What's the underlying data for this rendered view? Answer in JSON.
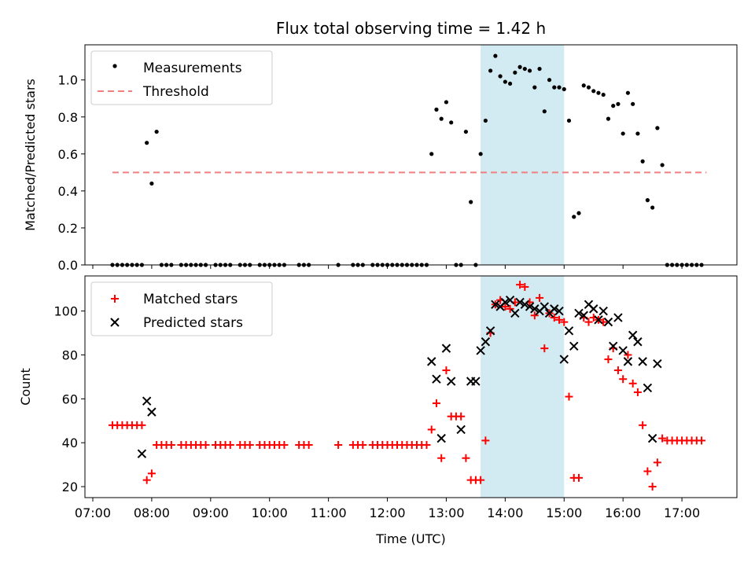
{
  "chart_data": [
    {
      "type": "scatter",
      "title": "Flux total observing time = 1.42 h",
      "xlabel": "",
      "ylabel": "Matched/Predicted stars",
      "ylim": [
        0,
        1.19
      ],
      "yticks": [
        0.0,
        0.2,
        0.4,
        0.6,
        0.8,
        1.0
      ],
      "ytick_labels": [
        "0.0",
        "0.2",
        "0.4",
        "0.6",
        "0.8",
        "1.0"
      ],
      "x_range": [
        "06:52",
        "17:56"
      ],
      "shaded_interval": [
        "13:35",
        "15:00"
      ],
      "shade_color": "#add8e6",
      "legend_position": "upper-left",
      "series": [
        {
          "name": "Measurements",
          "kind": "dots",
          "color": "#000000",
          "x": [
            "07:20",
            "07:25",
            "07:30",
            "07:35",
            "07:40",
            "07:45",
            "07:50",
            "07:55",
            "08:00",
            "08:05",
            "08:10",
            "08:15",
            "08:20",
            "08:30",
            "08:35",
            "08:40",
            "08:45",
            "08:50",
            "08:55",
            "09:05",
            "09:10",
            "09:15",
            "09:20",
            "09:30",
            "09:35",
            "09:40",
            "09:50",
            "09:55",
            "10:00",
            "10:05",
            "10:10",
            "10:15",
            "10:30",
            "10:35",
            "10:40",
            "11:10",
            "11:25",
            "11:30",
            "11:35",
            "11:45",
            "11:50",
            "11:55",
            "12:00",
            "12:05",
            "12:10",
            "12:15",
            "12:20",
            "12:25",
            "12:30",
            "12:35",
            "12:40",
            "12:45",
            "12:50",
            "12:55",
            "13:00",
            "13:05",
            "13:10",
            "13:15",
            "13:20",
            "13:25",
            "13:30",
            "13:35",
            "13:40",
            "13:45",
            "13:50",
            "13:55",
            "14:00",
            "14:05",
            "14:10",
            "14:15",
            "14:20",
            "14:25",
            "14:30",
            "14:35",
            "14:40",
            "14:45",
            "14:50",
            "14:55",
            "15:00",
            "15:05",
            "15:10",
            "15:15",
            "15:20",
            "15:25",
            "15:30",
            "15:35",
            "15:40",
            "15:45",
            "15:50",
            "15:55",
            "16:00",
            "16:05",
            "16:10",
            "16:15",
            "16:20",
            "16:25",
            "16:30",
            "16:35",
            "16:40",
            "16:45",
            "16:50",
            "16:55",
            "17:00",
            "17:05",
            "17:10",
            "17:15",
            "17:20"
          ],
          "y": [
            0,
            0,
            0,
            0,
            0,
            0,
            0,
            0.66,
            0.44,
            0.72,
            0,
            0,
            0,
            0,
            0,
            0,
            0,
            0,
            0,
            0,
            0,
            0,
            0,
            0,
            0,
            0,
            0,
            0,
            0,
            0,
            0,
            0,
            0,
            0,
            0,
            0,
            0,
            0,
            0,
            0,
            0,
            0,
            0,
            0,
            0,
            0,
            0,
            0,
            0,
            0,
            0,
            0.6,
            0.84,
            0.79,
            0.88,
            0.77,
            0,
            0,
            0.72,
            0.34,
            0,
            0.6,
            0.78,
            1.05,
            1.13,
            1.02,
            0.99,
            0.98,
            1.04,
            1.07,
            1.06,
            1.05,
            0.96,
            1.06,
            0.83,
            1.0,
            0.96,
            0.96,
            0.95,
            0.78,
            0.26,
            0.28,
            0.97,
            0.96,
            0.94,
            0.93,
            0.92,
            0.79,
            0.86,
            0.87,
            0.71,
            0.93,
            0.87,
            0.71,
            0.56,
            0.35,
            0.31,
            0.74,
            0.54,
            0,
            0,
            0,
            0,
            0,
            0,
            0,
            0
          ]
        },
        {
          "name": "Threshold",
          "kind": "dashed-line",
          "color": "#f08080",
          "x": [
            "07:20",
            "17:25"
          ],
          "y": [
            0.5,
            0.5
          ]
        }
      ]
    },
    {
      "type": "scatter",
      "title": "",
      "xlabel": "Time (UTC)",
      "ylabel": "Count",
      "ylim": [
        15,
        116
      ],
      "yticks": [
        20,
        40,
        60,
        80,
        100
      ],
      "ytick_labels": [
        "20",
        "40",
        "60",
        "80",
        "100"
      ],
      "x_range": [
        "06:52",
        "17:56"
      ],
      "xticks": [
        "07:00",
        "08:00",
        "09:00",
        "10:00",
        "11:00",
        "12:00",
        "13:00",
        "14:00",
        "15:00",
        "16:00",
        "17:00"
      ],
      "shaded_interval": [
        "13:35",
        "15:00"
      ],
      "shade_color": "#add8e6",
      "legend_position": "upper-left",
      "series": [
        {
          "name": "Matched stars",
          "kind": "plus",
          "color": "#ff0000",
          "x": [
            "07:20",
            "07:25",
            "07:30",
            "07:35",
            "07:40",
            "07:45",
            "07:50",
            "07:55",
            "08:00",
            "08:05",
            "08:10",
            "08:15",
            "08:20",
            "08:30",
            "08:35",
            "08:40",
            "08:45",
            "08:50",
            "08:55",
            "09:05",
            "09:10",
            "09:15",
            "09:20",
            "09:30",
            "09:35",
            "09:40",
            "09:50",
            "09:55",
            "10:00",
            "10:05",
            "10:10",
            "10:15",
            "10:30",
            "10:35",
            "10:40",
            "11:10",
            "11:25",
            "11:30",
            "11:35",
            "11:45",
            "11:50",
            "11:55",
            "12:00",
            "12:05",
            "12:10",
            "12:15",
            "12:20",
            "12:25",
            "12:30",
            "12:35",
            "12:40",
            "12:45",
            "12:50",
            "12:55",
            "13:00",
            "13:05",
            "13:10",
            "13:15",
            "13:20",
            "13:25",
            "13:30",
            "13:35",
            "13:40",
            "13:45",
            "13:50",
            "13:55",
            "14:00",
            "14:05",
            "14:10",
            "14:15",
            "14:20",
            "14:25",
            "14:30",
            "14:35",
            "14:40",
            "14:45",
            "14:50",
            "14:55",
            "15:00",
            "15:05",
            "15:10",
            "15:15",
            "15:20",
            "15:25",
            "15:30",
            "15:35",
            "15:40",
            "15:45",
            "15:50",
            "15:55",
            "16:00",
            "16:05",
            "16:10",
            "16:15",
            "16:20",
            "16:25",
            "16:30",
            "16:35",
            "16:40",
            "16:45",
            "16:50",
            "16:55",
            "17:00",
            "17:05",
            "17:10",
            "17:15",
            "17:20"
          ],
          "y": [
            48,
            48,
            48,
            48,
            48,
            48,
            48,
            23,
            26,
            39,
            39,
            39,
            39,
            39,
            39,
            39,
            39,
            39,
            39,
            39,
            39,
            39,
            39,
            39,
            39,
            39,
            39,
            39,
            39,
            39,
            39,
            39,
            39,
            39,
            39,
            39,
            39,
            39,
            39,
            39,
            39,
            39,
            39,
            39,
            39,
            39,
            39,
            39,
            39,
            39,
            39,
            46,
            58,
            33,
            73,
            52,
            52,
            52,
            33,
            23,
            23,
            23,
            41,
            90,
            103,
            105,
            102,
            101,
            104,
            112,
            111,
            104,
            98,
            106,
            83,
            99,
            97,
            96,
            95,
            61,
            24,
            24,
            97,
            95,
            97,
            96,
            95,
            78,
            83,
            73,
            69,
            80,
            67,
            63,
            48,
            27,
            20,
            31,
            42,
            41,
            41,
            41,
            41,
            41,
            41,
            41,
            41
          ]
        },
        {
          "name": "Predicted stars",
          "kind": "x",
          "color": "#000000",
          "x": [
            "07:50",
            "07:55",
            "08:00",
            "12:45",
            "12:50",
            "12:55",
            "13:00",
            "13:05",
            "13:15",
            "13:25",
            "13:30",
            "13:35",
            "13:40",
            "13:45",
            "13:50",
            "13:55",
            "14:00",
            "14:05",
            "14:10",
            "14:15",
            "14:20",
            "14:25",
            "14:30",
            "14:35",
            "14:40",
            "14:45",
            "14:50",
            "14:55",
            "15:00",
            "15:05",
            "15:10",
            "15:15",
            "15:20",
            "15:25",
            "15:30",
            "15:35",
            "15:40",
            "15:45",
            "15:50",
            "15:55",
            "16:00",
            "16:05",
            "16:10",
            "16:15",
            "16:20",
            "16:25",
            "16:30",
            "16:35"
          ],
          "y": [
            35,
            59,
            54,
            77,
            69,
            42,
            83,
            68,
            46,
            68,
            68,
            82,
            86,
            91,
            103,
            102,
            104,
            105,
            99,
            104,
            103,
            102,
            101,
            100,
            102,
            99,
            101,
            100,
            78,
            91,
            84,
            99,
            98,
            103,
            101,
            96,
            100,
            95,
            84,
            97,
            82,
            77,
            89,
            86,
            77,
            65,
            42,
            76
          ]
        }
      ]
    }
  ]
}
